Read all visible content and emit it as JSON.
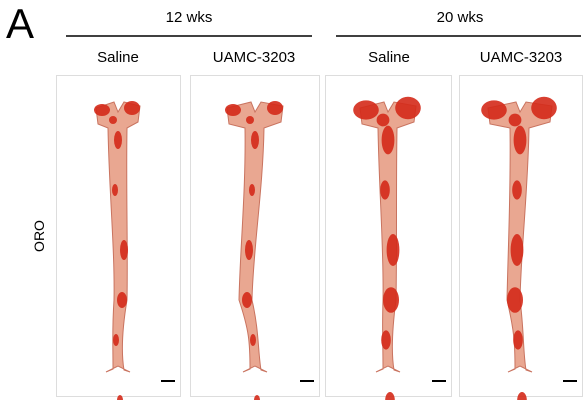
{
  "panel_label": "A",
  "groups": [
    {
      "label": "12 wks",
      "columns": [
        "Saline",
        "UAMC-3203"
      ]
    },
    {
      "label": "20 wks",
      "columns": [
        "Saline",
        "UAMC-3203"
      ]
    }
  ],
  "row_label": "ORO"
}
